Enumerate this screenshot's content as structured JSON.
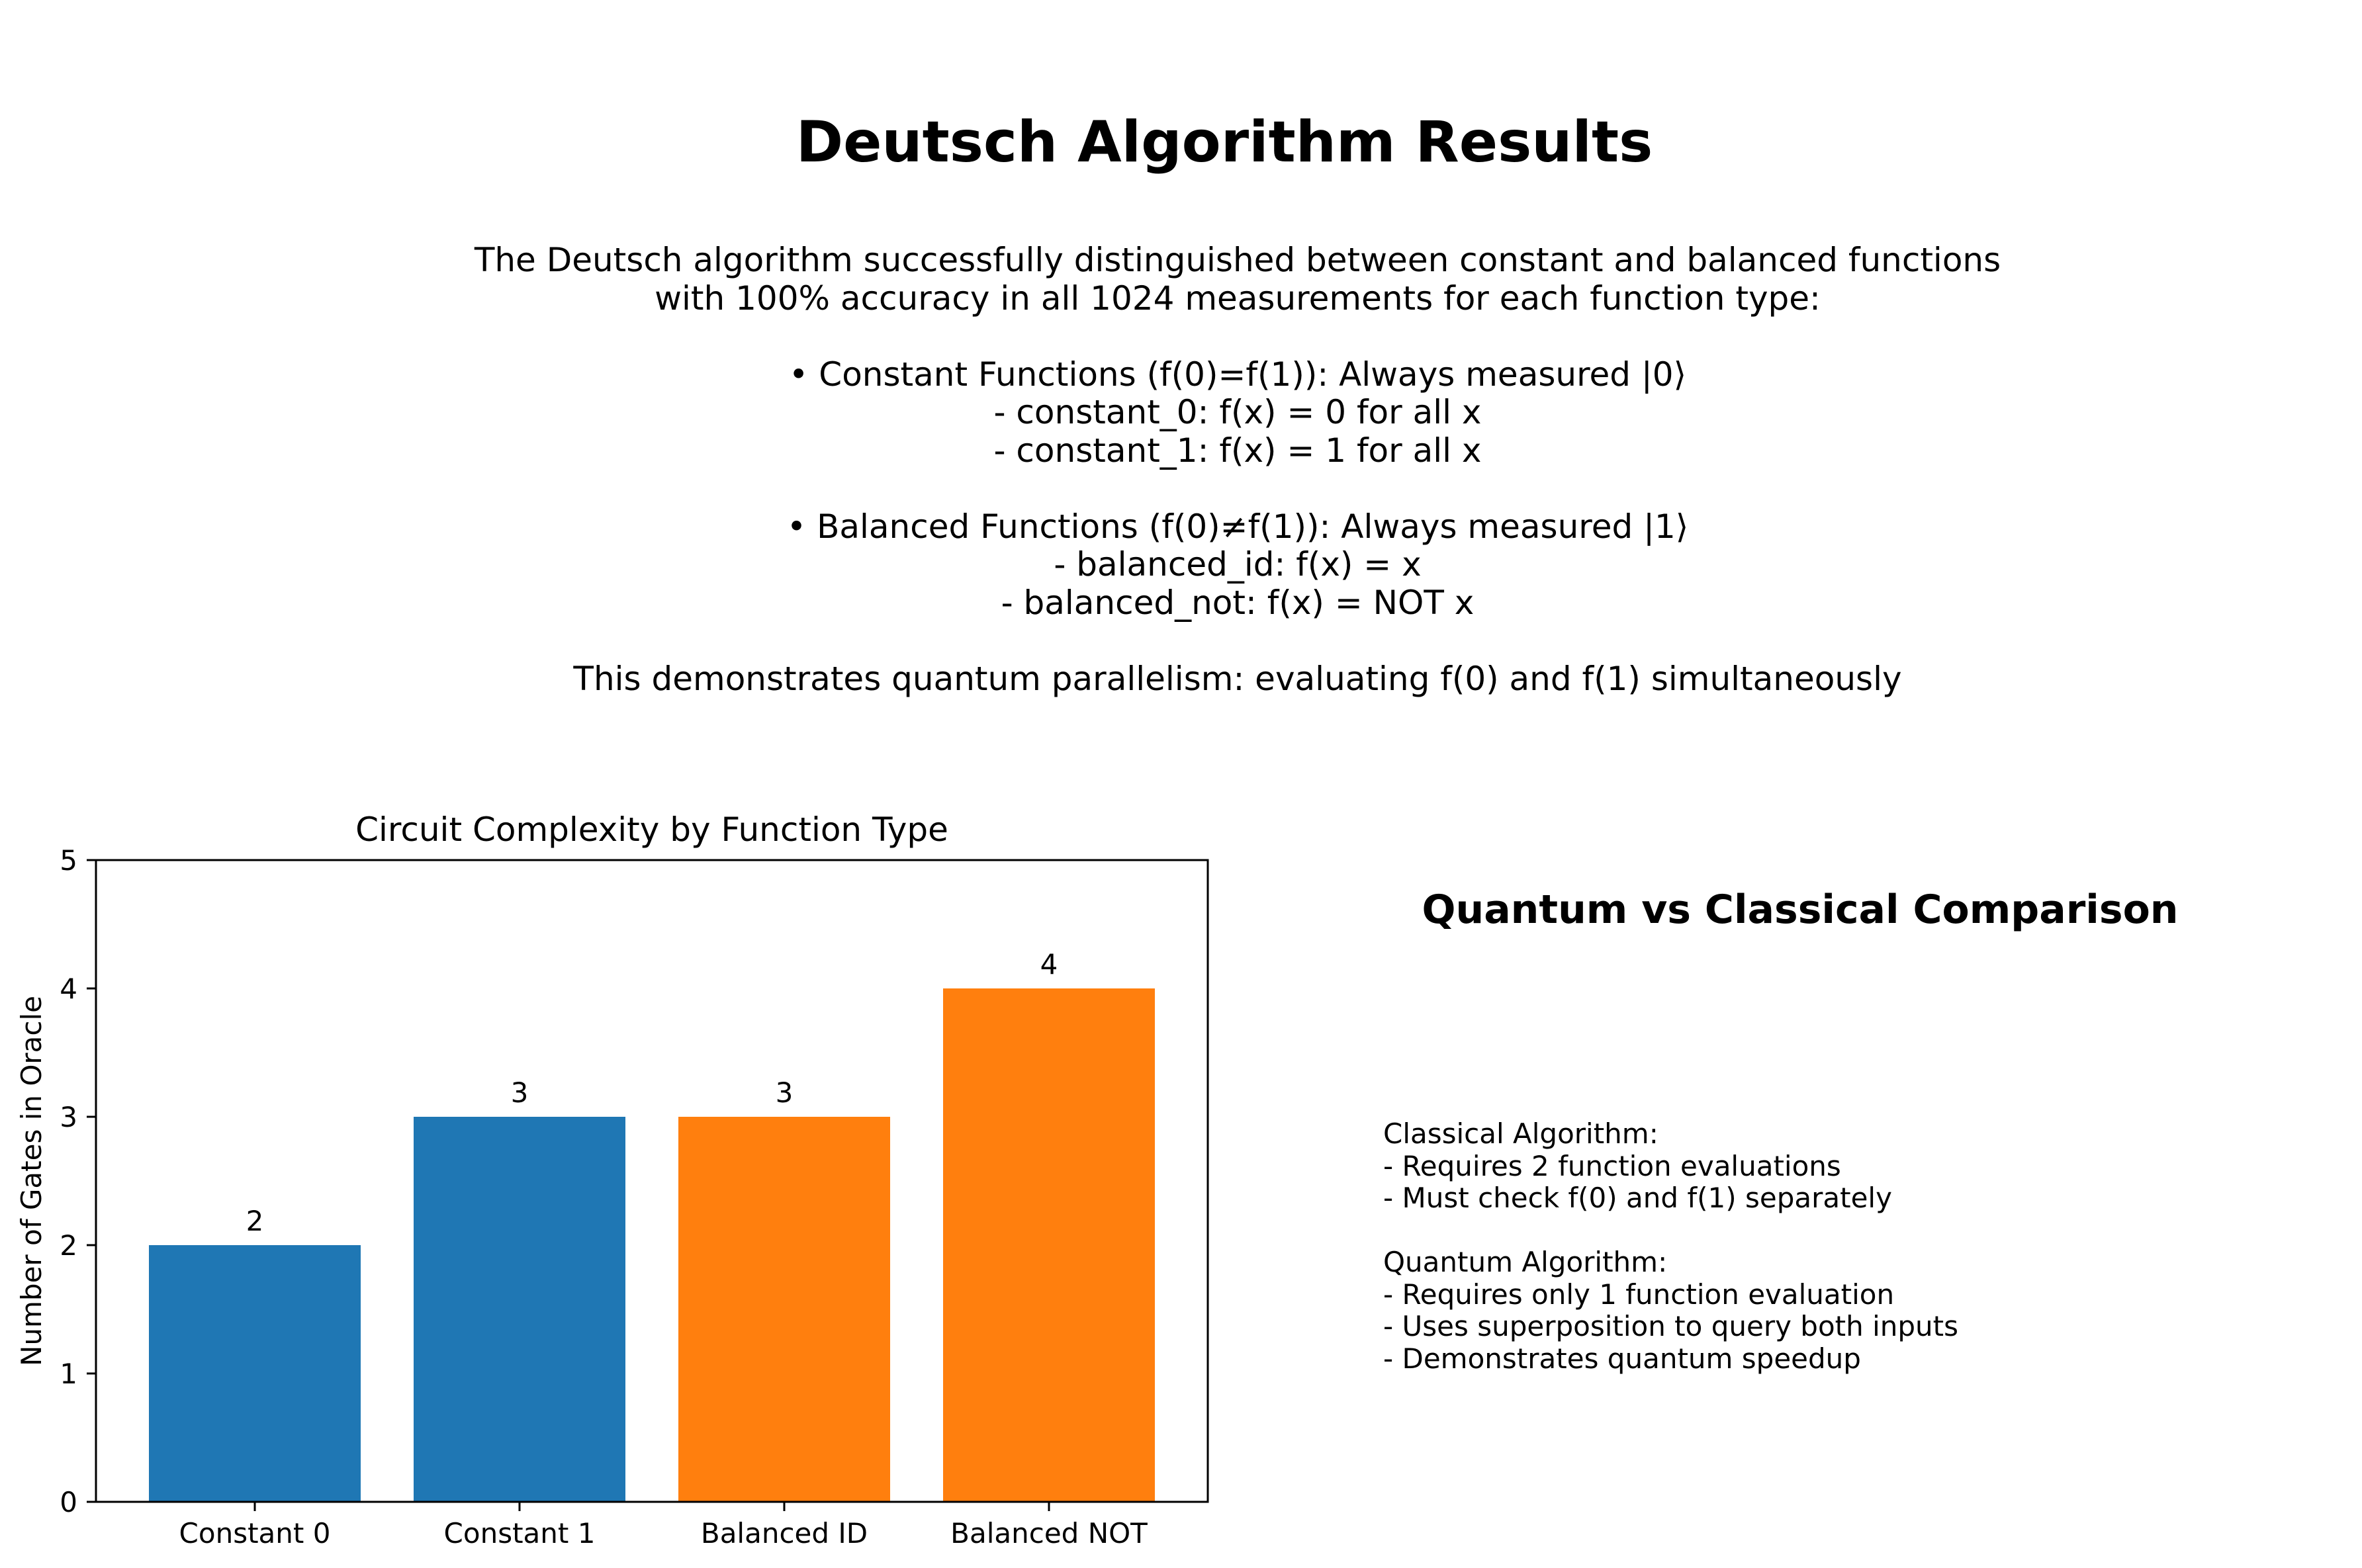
{
  "page_title": "Deutsch Algorithm Results",
  "summary": {
    "intro_line_1": "The Deutsch algorithm successfully distinguished between constant and balanced functions",
    "intro_line_2": "with 100% accuracy in all 1024 measurements for each function type:",
    "constant_header": "• Constant Functions (f(0)=f(1)): Always measured |0⟩",
    "constant_item_1": "- constant_0: f(x) = 0 for all x",
    "constant_item_2": "- constant_1: f(x) = 1 for all x",
    "balanced_header": "• Balanced Functions (f(0)≠f(1)): Always measured |1⟩",
    "balanced_item_1": "- balanced_id: f(x) = x",
    "balanced_item_2": "- balanced_not: f(x) = NOT x",
    "conclusion": "This demonstrates quantum parallelism: evaluating f(0) and f(1) simultaneously"
  },
  "chart_data": {
    "type": "bar",
    "title": "Circuit Complexity by Function Type",
    "xlabel": "",
    "ylabel": "Number of Gates in Oracle",
    "categories": [
      "Constant 0",
      "Constant 1",
      "Balanced ID",
      "Balanced NOT"
    ],
    "values": [
      2,
      3,
      3,
      4
    ],
    "colors": [
      "#1f77b4",
      "#1f77b4",
      "#ff7f0e",
      "#ff7f0e"
    ],
    "ylim": [
      0,
      5
    ],
    "yticks": [
      0,
      1,
      2,
      3,
      4,
      5
    ],
    "data_labels": [
      "2",
      "3",
      "3",
      "4"
    ]
  },
  "comparison": {
    "title": "Quantum vs Classical Comparison",
    "classical_header": "Classical Algorithm:",
    "classical_items": [
      "- Requires 2 function evaluations",
      "- Must check f(0) and f(1) separately"
    ],
    "quantum_header": "Quantum Algorithm:",
    "quantum_items": [
      "- Requires only 1 function evaluation",
      "- Uses superposition to query both inputs",
      "- Demonstrates quantum speedup"
    ]
  }
}
